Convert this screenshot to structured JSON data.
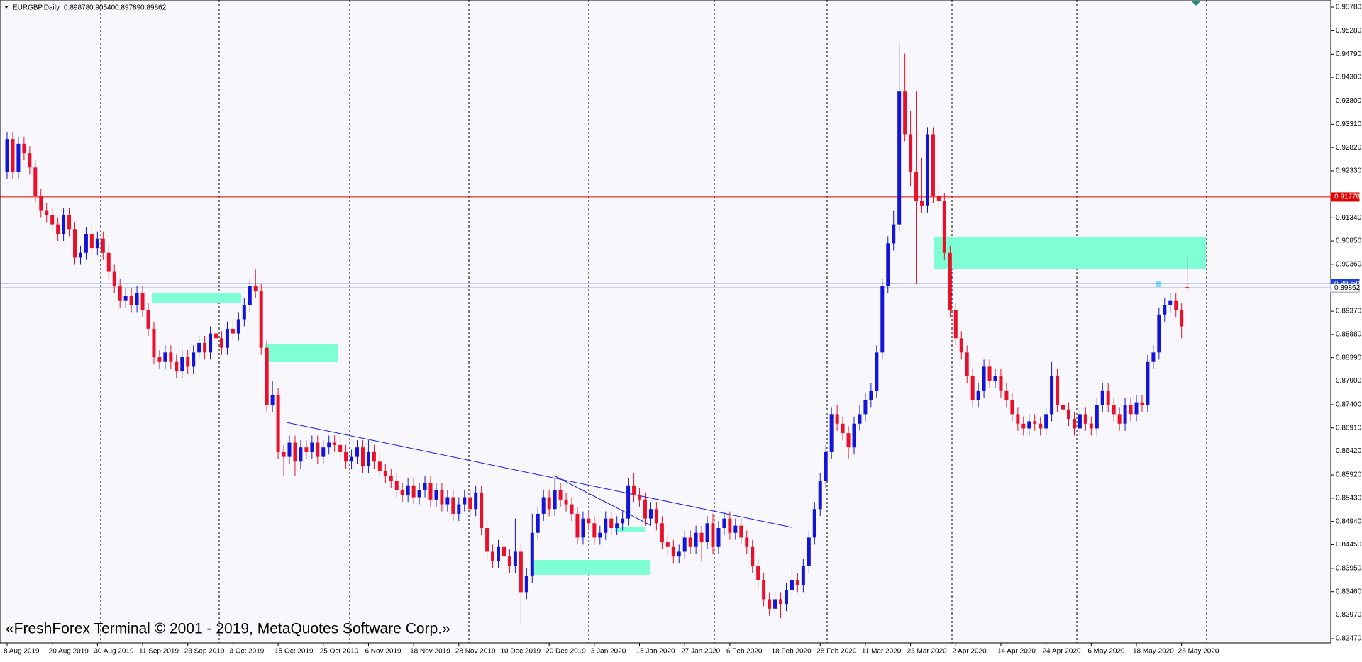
{
  "chart_data": {
    "type": "candlestick",
    "symbol": "EURGBP,Daily",
    "ohlc_text": [
      "0.89878",
      "0.90540",
      "0.89789",
      "0.89862"
    ],
    "watermark": "«FreshForex Terminal © 2001 - 2019, MetaQuotes Software Corp.»",
    "up_color": "#1414d8",
    "down_color": "#e8102a",
    "categories": [
      "8 Aug 2019",
      null,
      null,
      null,
      null,
      null,
      null,
      null,
      "20 Aug 2019",
      null,
      null,
      null,
      null,
      null,
      null,
      null,
      "30 Aug 2019",
      null,
      null,
      null,
      null,
      null,
      null,
      null,
      "11 Sep 2019",
      null,
      null,
      null,
      null,
      null,
      null,
      null,
      "23 Sep 2019",
      null,
      null,
      null,
      null,
      null,
      null,
      null,
      "3 Oct 2019",
      null,
      null,
      null,
      null,
      null,
      null,
      null,
      "15 Oct 2019",
      null,
      null,
      null,
      null,
      null,
      null,
      null,
      "25 Oct 2019",
      null,
      null,
      null,
      null,
      null,
      null,
      null,
      "6 Nov 2019",
      null,
      null,
      null,
      null,
      null,
      null,
      null,
      "18 Nov 2019",
      null,
      null,
      null,
      null,
      null,
      null,
      null,
      "28 Nov 2019",
      null,
      null,
      null,
      null,
      null,
      null,
      null,
      "10 Dec 2019",
      null,
      null,
      null,
      null,
      null,
      null,
      null,
      "20 Dec 2019",
      null,
      null,
      null,
      null,
      null,
      null,
      null,
      "3 Jan 2020",
      null,
      null,
      null,
      null,
      null,
      null,
      null,
      "15 Jan 2020",
      null,
      null,
      null,
      null,
      null,
      null,
      null,
      "27 Jan 2020",
      null,
      null,
      null,
      null,
      null,
      null,
      null,
      "6 Feb 2020",
      null,
      null,
      null,
      null,
      null,
      null,
      null,
      "18 Feb 2020",
      null,
      null,
      null,
      null,
      null,
      null,
      null,
      "28 Feb 2020",
      null,
      null,
      null,
      null,
      null,
      null,
      null,
      "11 Mar 2020",
      null,
      null,
      null,
      null,
      null,
      null,
      null,
      "23 Mar 2020",
      null,
      null,
      null,
      null,
      null,
      null,
      null,
      "2 Apr 2020",
      null,
      null,
      null,
      null,
      null,
      null,
      null,
      "14 Apr 2020",
      null,
      null,
      null,
      null,
      null,
      null,
      null,
      "24 Apr 2020",
      null,
      null,
      null,
      null,
      null,
      null,
      null,
      "6 May 2020",
      null,
      null,
      null,
      null,
      null,
      null,
      null,
      "18 May 2020",
      null,
      null,
      null,
      null,
      null,
      null,
      null,
      "28 May 2020",
      null
    ],
    "open": [
      0.923,
      0.93,
      0.923,
      0.929,
      0.927,
      0.924,
      0.918,
      0.915,
      0.914,
      0.912,
      0.91,
      0.914,
      0.911,
      0.905,
      0.906,
      0.91,
      0.907,
      0.909,
      0.906,
      0.902,
      0.899,
      0.896,
      0.897,
      0.895,
      0.8975,
      0.894,
      0.89,
      0.884,
      0.883,
      0.885,
      0.883,
      0.881,
      0.884,
      0.882,
      0.885,
      0.887,
      0.885,
      0.889,
      0.888,
      0.886,
      0.89,
      0.889,
      0.892,
      0.895,
      0.899,
      0.898,
      0.886,
      0.874,
      0.876,
      0.864,
      0.863,
      0.866,
      0.862,
      0.865,
      0.864,
      0.866,
      0.863,
      0.865,
      0.866,
      0.8655,
      0.864,
      0.862,
      0.863,
      0.865,
      0.861,
      0.864,
      0.862,
      0.86,
      0.859,
      0.858,
      0.856,
      0.855,
      0.857,
      0.8545,
      0.856,
      0.8575,
      0.854,
      0.856,
      0.853,
      0.8545,
      0.851,
      0.853,
      0.8545,
      0.852,
      0.8555,
      0.848,
      0.843,
      0.841,
      0.844,
      0.842,
      0.84,
      0.843,
      0.8345,
      0.838,
      0.847,
      0.851,
      0.8545,
      0.852,
      0.856,
      0.854,
      0.853,
      0.851,
      0.846,
      0.85,
      0.849,
      0.846,
      0.847,
      0.85,
      0.848,
      0.849,
      0.85,
      0.857,
      0.855,
      0.854,
      0.85,
      0.852,
      0.849,
      0.845,
      0.844,
      0.842,
      0.843,
      0.846,
      0.844,
      0.847,
      0.845,
      0.849,
      0.844,
      0.848,
      0.85,
      0.847,
      0.8485,
      0.846,
      0.844,
      0.84,
      0.837,
      0.833,
      0.831,
      0.833,
      0.832,
      0.835,
      0.837,
      0.836,
      0.84,
      0.846,
      0.852,
      0.858,
      0.864,
      0.872,
      0.87,
      0.868,
      0.865,
      0.87,
      0.872,
      0.875,
      0.877,
      0.885,
      0.899,
      0.908,
      0.912,
      0.94,
      0.931,
      0.923,
      0.917,
      0.916,
      0.931,
      0.918,
      0.917,
      0.906,
      0.894,
      0.888,
      0.885,
      0.88,
      0.875,
      0.877,
      0.882,
      0.879,
      0.88,
      0.877,
      0.875,
      0.872,
      0.87,
      0.869,
      0.8705,
      0.87,
      0.869,
      0.872,
      0.88,
      0.874,
      0.873,
      0.871,
      0.869,
      0.872,
      0.87,
      0.869,
      0.874,
      0.877,
      0.874,
      0.872,
      0.87,
      0.874,
      0.872,
      0.8745,
      0.874,
      0.883,
      0.885,
      0.893,
      0.895,
      0.896,
      0.894,
      0.89878
    ],
    "high": [
      0.9315,
      0.9315,
      0.9305,
      0.9305,
      0.9285,
      0.9255,
      0.9195,
      0.9165,
      0.9155,
      0.9135,
      0.9155,
      0.9155,
      0.9125,
      0.9075,
      0.9115,
      0.9115,
      0.9105,
      0.9105,
      0.9075,
      0.9035,
      0.9005,
      0.8985,
      0.8985,
      0.899,
      0.899,
      0.8955,
      0.8915,
      0.8855,
      0.8865,
      0.8865,
      0.8845,
      0.8855,
      0.8855,
      0.8865,
      0.8885,
      0.8885,
      0.8905,
      0.8905,
      0.8895,
      0.8915,
      0.8915,
      0.8935,
      0.8965,
      0.9005,
      0.9025,
      0.8995,
      0.8875,
      0.879,
      0.8775,
      0.8655,
      0.8675,
      0.8675,
      0.8665,
      0.8665,
      0.8675,
      0.8675,
      0.8665,
      0.8675,
      0.8675,
      0.867,
      0.8655,
      0.8645,
      0.8665,
      0.8665,
      0.8665,
      0.8655,
      0.8635,
      0.8615,
      0.8605,
      0.8595,
      0.8575,
      0.8585,
      0.8585,
      0.8575,
      0.859,
      0.859,
      0.8575,
      0.8575,
      0.856,
      0.856,
      0.8545,
      0.856,
      0.856,
      0.857,
      0.857,
      0.8495,
      0.8445,
      0.8455,
      0.8455,
      0.8435,
      0.85,
      0.8445,
      0.8395,
      0.851,
      0.8525,
      0.856,
      0.856,
      0.8585,
      0.8575,
      0.8555,
      0.8545,
      0.8525,
      0.8515,
      0.8515,
      0.8505,
      0.8485,
      0.8515,
      0.8515,
      0.8505,
      0.8515,
      0.8585,
      0.8595,
      0.8565,
      0.8555,
      0.8535,
      0.8535,
      0.8505,
      0.8465,
      0.8455,
      0.8445,
      0.8475,
      0.8475,
      0.8485,
      0.8485,
      0.8505,
      0.851,
      0.8495,
      0.8515,
      0.8515,
      0.85,
      0.85,
      0.8475,
      0.8455,
      0.8415,
      0.8385,
      0.8345,
      0.8345,
      0.8345,
      0.8365,
      0.84,
      0.8385,
      0.8415,
      0.8475,
      0.8535,
      0.8595,
      0.8655,
      0.8735,
      0.874,
      0.8715,
      0.8695,
      0.8715,
      0.874,
      0.8765,
      0.8785,
      0.8865,
      0.9005,
      0.9095,
      0.915,
      0.95,
      0.948,
      0.936,
      0.94,
      0.926,
      0.9325,
      0.9325,
      0.92,
      0.9185,
      0.9075,
      0.8955,
      0.8895,
      0.8865,
      0.8815,
      0.8785,
      0.8835,
      0.8835,
      0.8815,
      0.8815,
      0.8785,
      0.8765,
      0.8735,
      0.8715,
      0.872,
      0.872,
      0.8715,
      0.8735,
      0.883,
      0.8815,
      0.8755,
      0.8745,
      0.8725,
      0.8735,
      0.8735,
      0.8715,
      0.8755,
      0.8785,
      0.8785,
      0.8755,
      0.8735,
      0.8755,
      0.8755,
      0.876,
      0.876,
      0.8845,
      0.8865,
      0.8945,
      0.8965,
      0.8975,
      0.8975,
      0.8955,
      0.9054
    ],
    "low": [
      0.9215,
      0.9215,
      0.9215,
      0.9255,
      0.9225,
      0.9165,
      0.9135,
      0.9125,
      0.9105,
      0.9085,
      0.9085,
      0.9095,
      0.9035,
      0.9035,
      0.9045,
      0.9055,
      0.9055,
      0.9045,
      0.9005,
      0.8975,
      0.8945,
      0.8945,
      0.8935,
      0.8935,
      0.8925,
      0.8885,
      0.8825,
      0.8815,
      0.8815,
      0.8815,
      0.8795,
      0.8795,
      0.8805,
      0.8805,
      0.8835,
      0.8835,
      0.8835,
      0.8865,
      0.8845,
      0.8845,
      0.8875,
      0.8875,
      0.8905,
      0.8935,
      0.8965,
      0.8845,
      0.8725,
      0.8725,
      0.8625,
      0.859,
      0.8615,
      0.859,
      0.8605,
      0.8625,
      0.8625,
      0.8615,
      0.8615,
      0.8635,
      0.864,
      0.8625,
      0.8605,
      0.8605,
      0.8615,
      0.8595,
      0.8595,
      0.8605,
      0.8585,
      0.8575,
      0.8565,
      0.8545,
      0.8535,
      0.8535,
      0.853,
      0.853,
      0.8545,
      0.8525,
      0.8525,
      0.8515,
      0.8515,
      0.8495,
      0.8495,
      0.8515,
      0.8505,
      0.8505,
      0.8465,
      0.8415,
      0.8395,
      0.8395,
      0.8405,
      0.8385,
      0.8385,
      0.828,
      0.833,
      0.8365,
      0.8455,
      0.8495,
      0.8505,
      0.8505,
      0.8525,
      0.8515,
      0.8495,
      0.8445,
      0.8445,
      0.8475,
      0.8445,
      0.8445,
      0.8455,
      0.8465,
      0.8465,
      0.8475,
      0.8485,
      0.8535,
      0.8525,
      0.8485,
      0.8485,
      0.8475,
      0.8435,
      0.8425,
      0.8405,
      0.8405,
      0.8415,
      0.8425,
      0.8425,
      0.841,
      0.8435,
      0.8425,
      0.8425,
      0.8465,
      0.8455,
      0.8455,
      0.8445,
      0.8425,
      0.8385,
      0.8355,
      0.8315,
      0.8295,
      0.8295,
      0.829,
      0.8305,
      0.8335,
      0.8345,
      0.8345,
      0.8385,
      0.8445,
      0.8505,
      0.8565,
      0.8625,
      0.8685,
      0.8665,
      0.8625,
      0.8635,
      0.8685,
      0.8705,
      0.8735,
      0.8755,
      0.8835,
      0.8975,
      0.9065,
      0.9105,
      0.9295,
      0.92,
      0.8995,
      0.9145,
      0.9145,
      0.9165,
      0.9155,
      0.9045,
      0.8925,
      0.8865,
      0.8835,
      0.8785,
      0.8735,
      0.8735,
      0.8755,
      0.8775,
      0.8775,
      0.8755,
      0.8735,
      0.8705,
      0.8685,
      0.8675,
      0.8675,
      0.8685,
      0.8675,
      0.8675,
      0.8705,
      0.8725,
      0.8715,
      0.8695,
      0.8675,
      0.8675,
      0.8685,
      0.8675,
      0.8675,
      0.8725,
      0.8725,
      0.8705,
      0.8685,
      0.8685,
      0.8705,
      0.8705,
      0.8725,
      0.8725,
      0.8815,
      0.8835,
      0.8915,
      0.8935,
      0.8925,
      0.888,
      0.89789
    ],
    "close": [
      0.93,
      0.923,
      0.929,
      0.927,
      0.924,
      0.918,
      0.915,
      0.914,
      0.912,
      0.91,
      0.914,
      0.911,
      0.905,
      0.906,
      0.91,
      0.907,
      0.909,
      0.906,
      0.902,
      0.899,
      0.896,
      0.897,
      0.895,
      0.8975,
      0.894,
      0.89,
      0.884,
      0.883,
      0.885,
      0.883,
      0.881,
      0.884,
      0.882,
      0.885,
      0.887,
      0.885,
      0.889,
      0.888,
      0.886,
      0.89,
      0.889,
      0.892,
      0.895,
      0.899,
      0.898,
      0.886,
      0.874,
      0.876,
      0.864,
      0.863,
      0.866,
      0.862,
      0.865,
      0.864,
      0.866,
      0.863,
      0.865,
      0.866,
      0.8655,
      0.864,
      0.862,
      0.863,
      0.865,
      0.861,
      0.864,
      0.862,
      0.86,
      0.859,
      0.858,
      0.856,
      0.855,
      0.857,
      0.8545,
      0.856,
      0.8575,
      0.854,
      0.856,
      0.853,
      0.8545,
      0.851,
      0.853,
      0.8545,
      0.852,
      0.8555,
      0.848,
      0.843,
      0.841,
      0.844,
      0.842,
      0.84,
      0.843,
      0.8345,
      0.838,
      0.847,
      0.851,
      0.8545,
      0.852,
      0.856,
      0.854,
      0.853,
      0.851,
      0.846,
      0.85,
      0.849,
      0.846,
      0.847,
      0.85,
      0.848,
      0.849,
      0.85,
      0.857,
      0.855,
      0.854,
      0.85,
      0.852,
      0.849,
      0.845,
      0.844,
      0.842,
      0.843,
      0.846,
      0.844,
      0.847,
      0.845,
      0.849,
      0.844,
      0.848,
      0.85,
      0.847,
      0.8485,
      0.846,
      0.844,
      0.84,
      0.837,
      0.833,
      0.831,
      0.833,
      0.832,
      0.835,
      0.837,
      0.836,
      0.84,
      0.846,
      0.852,
      0.858,
      0.864,
      0.872,
      0.87,
      0.868,
      0.865,
      0.87,
      0.872,
      0.875,
      0.877,
      0.885,
      0.899,
      0.908,
      0.912,
      0.94,
      0.931,
      0.923,
      0.917,
      0.916,
      0.931,
      0.918,
      0.917,
      0.906,
      0.894,
      0.888,
      0.885,
      0.88,
      0.875,
      0.877,
      0.882,
      0.879,
      0.88,
      0.877,
      0.875,
      0.872,
      0.87,
      0.869,
      0.8705,
      0.87,
      0.869,
      0.872,
      0.88,
      0.874,
      0.873,
      0.871,
      0.869,
      0.872,
      0.87,
      0.869,
      0.874,
      0.877,
      0.874,
      0.872,
      0.87,
      0.874,
      0.872,
      0.8745,
      0.874,
      0.883,
      0.885,
      0.893,
      0.895,
      0.896,
      0.894,
      0.8905,
      0.89862
    ],
    "ylim": [
      0.8238,
      0.9593
    ],
    "yticks": [
      {
        "value": 0.9578,
        "label": "0.95780"
      },
      {
        "value": 0.9528,
        "label": "0.95280"
      },
      {
        "value": 0.9479,
        "label": "0.94790"
      },
      {
        "value": 0.943,
        "label": "0.94300"
      },
      {
        "value": 0.938,
        "label": "0.93800"
      },
      {
        "value": 0.9331,
        "label": "0.93310"
      },
      {
        "value": 0.9282,
        "label": "0.92820"
      },
      {
        "value": 0.9233,
        "label": "0.92330"
      },
      {
        "value": 0.9134,
        "label": "0.91340"
      },
      {
        "value": 0.9085,
        "label": "0.90850"
      },
      {
        "value": 0.9036,
        "label": "0.90360"
      },
      {
        "value": 0.8937,
        "label": "0.89370"
      },
      {
        "value": 0.8888,
        "label": "0.88880"
      },
      {
        "value": 0.8839,
        "label": "0.88390"
      },
      {
        "value": 0.879,
        "label": "0.87900"
      },
      {
        "value": 0.874,
        "label": "0.87400"
      },
      {
        "value": 0.8691,
        "label": "0.86910"
      },
      {
        "value": 0.8642,
        "label": "0.86420"
      },
      {
        "value": 0.8592,
        "label": "0.85920"
      },
      {
        "value": 0.8543,
        "label": "0.85430"
      },
      {
        "value": 0.8494,
        "label": "0.84940"
      },
      {
        "value": 0.8445,
        "label": "0.84450"
      },
      {
        "value": 0.8395,
        "label": "0.83950"
      },
      {
        "value": 0.8346,
        "label": "0.83460"
      },
      {
        "value": 0.8297,
        "label": "0.82970"
      },
      {
        "value": 0.8247,
        "label": "0.82470"
      }
    ],
    "levels": [
      {
        "value": 0.91778,
        "color": "#e00000",
        "text_color": "#ffffff"
      },
      {
        "value": 0.8995,
        "label": "0.89950",
        "color": "#1c3fd0",
        "text_color": "#ffffff"
      },
      {
        "value": 0.89862,
        "color": "#8a9aaa",
        "text_color": "#000000"
      }
    ]
  }
}
